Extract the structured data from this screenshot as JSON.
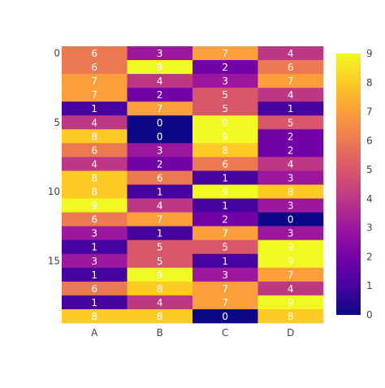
{
  "chart_data": {
    "type": "heatmap",
    "title": "",
    "xlabel": "",
    "ylabel": "",
    "columns": [
      "A",
      "B",
      "C",
      "D"
    ],
    "y_ticks": [
      0,
      5,
      10,
      15
    ],
    "rows": [
      [
        6,
        3,
        7,
        4
      ],
      [
        6,
        9,
        2,
        6
      ],
      [
        7,
        4,
        3,
        7
      ],
      [
        7,
        2,
        5,
        4
      ],
      [
        1,
        7,
        5,
        1
      ],
      [
        4,
        0,
        9,
        5
      ],
      [
        8,
        0,
        9,
        2
      ],
      [
        6,
        3,
        8,
        2
      ],
      [
        4,
        2,
        6,
        4
      ],
      [
        8,
        6,
        1,
        3
      ],
      [
        8,
        1,
        9,
        8
      ],
      [
        9,
        4,
        1,
        3
      ],
      [
        6,
        7,
        2,
        0
      ],
      [
        3,
        1,
        7,
        3
      ],
      [
        1,
        5,
        5,
        9
      ],
      [
        3,
        5,
        1,
        9
      ],
      [
        1,
        9,
        3,
        7
      ],
      [
        6,
        8,
        7,
        4
      ],
      [
        1,
        4,
        7,
        9
      ],
      [
        8,
        8,
        0,
        8
      ]
    ],
    "colorscale": "plasma",
    "zmin": 0,
    "zmax": 9,
    "colorbar_ticks": [
      0,
      1,
      2,
      3,
      4,
      5,
      6,
      7,
      8,
      9
    ],
    "cell_labels": true
  }
}
